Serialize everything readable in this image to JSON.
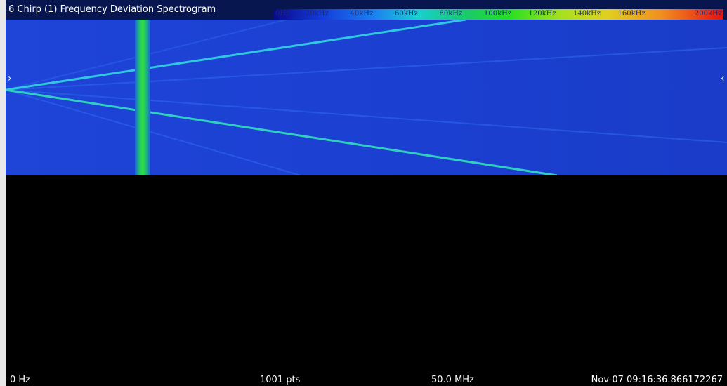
{
  "header": {
    "title": "6 Chirp (1) Frequency Deviation Spectrogram"
  },
  "colorbar": {
    "labels": [
      "0Hz",
      "20kHz",
      "40kHz",
      "60kHz",
      "80kHz",
      "100kHz",
      "120kHz",
      "140kHz",
      "160kHz",
      "200kHz"
    ]
  },
  "footer": {
    "start": "0 Hz",
    "points": "1001 pts",
    "span": "50.0 MHz",
    "timestamp": "Nov-07 09:16:36.866172267"
  }
}
